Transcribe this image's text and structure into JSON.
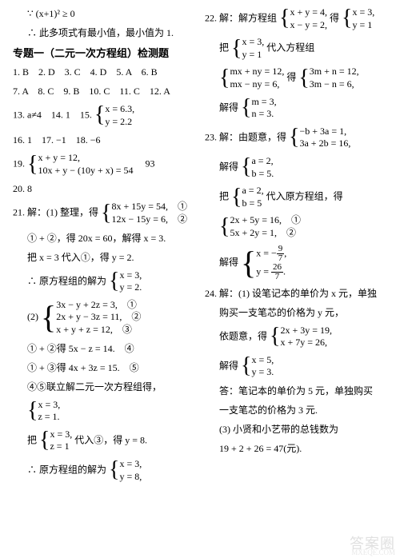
{
  "left": {
    "l1": "∵ (x+1)² ≥ 0",
    "l2": "∴ 此多项式有最小值，最小值为 1.",
    "header": "专题一（二元一次方程组）检测题",
    "ans1": "1. B　2. D　3. C　4. D　5. A　6. B",
    "ans2": "7. A　8. C　9. B　10. C　11. C　12. A",
    "ans3a": "13. a≠4　14. 1　15.",
    "sys15a": "x = 6.3,",
    "sys15b": "y = 2.2",
    "ans4": "16. 1　17. −1　18. −6",
    "n19": "19.",
    "sys19a": "x + y = 12,",
    "sys19b": "10x + y − (10y + x) = 54",
    "n19ans": "93",
    "n20": "20. 8",
    "n21": "21. 解：(1) 整理，得",
    "sys21a": "8x + 15y = 54,　①",
    "sys21b": "12x − 15y = 6,　②",
    "l21c": "① + ②，得 20x = 60，解得 x = 3.",
    "l21d": "把 x = 3 代入①，得 y = 2.",
    "l21e": "∴ 原方程组的解为",
    "sys21ea": "x = 3,",
    "sys21eb": "y = 2.",
    "n21_2": "(2)",
    "sys21_2a": "3x − y + 2z = 3,　①",
    "sys21_2b": "2x + y − 3z = 11,　②",
    "sys21_2c": "x + y + z = 12,　③",
    "l21_2d": "① + ②得 5x − z = 14.　④",
    "l21_2e": "① + ③得 4x + 3z = 15.　⑤",
    "l21_2f": "④⑤联立解二元一次方程组得，",
    "sys21_2ga": "x = 3,",
    "sys21_2gb": "z = 1.",
    "l21_2h": "把",
    "sys21_2ha": "x = 3,",
    "sys21_2hb": "z = 1",
    "l21_2h2": "代入③，得 y = 8.",
    "l21_2i": "∴ 原方程组的解为",
    "sys21_2ia": "x = 3,",
    "sys21_2ib": "y = 8,"
  },
  "right": {
    "n22": "22. 解：解方程组",
    "sys22a": "x + y = 4,",
    "sys22b": "x − y = 2,",
    "n22b": "得",
    "sys22ba": "x = 3,",
    "sys22bb": "y = 1",
    "n22c": "把",
    "sys22ca": "x = 3,",
    "sys22cb": "y = 1",
    "n22c2": "代入方程组",
    "sys22da": "mx + ny = 12,",
    "sys22db": "mx − ny = 6,",
    "n22d2": "得",
    "sys22ea": "3m + n = 12,",
    "sys22eb": "3m − n = 6,",
    "n22f": "解得",
    "sys22fa": "m = 3,",
    "sys22fb": "n = 3.",
    "n23": "23. 解：由题意，得",
    "sys23a": "−b + 3a = 1,",
    "sys23b": "3a + 2b = 16,",
    "n23c": "解得",
    "sys23ca": "a = 2,",
    "sys23cb": "b = 5.",
    "n23d": "把",
    "sys23da": "a = 2,",
    "sys23db": "b = 5",
    "n23d2": "代入原方程组，得",
    "sys23ea": "2x + 5y = 16,　①",
    "sys23eb": "5x + 2y = 1,　②",
    "n23f": "解得",
    "sys23fa_pre": "x = −",
    "sys23fa_num": "9",
    "sys23fa_den": "7",
    "sys23fb_pre": "y = ",
    "sys23fb_num": "26",
    "sys23fb_den": "7",
    "n24": "24. 解：(1) 设笔记本的单价为 x 元，单独",
    "n24b": "购买一支笔芯的价格为 y 元，",
    "n24c": "依题意，得",
    "sys24a": "2x + 3y = 19,",
    "sys24b": "x + 7y = 26,",
    "n24d": "解得",
    "sys24da": "x = 5,",
    "sys24db": "y = 3.",
    "n24e": "答：笔记本的单价为 5 元，单独购买",
    "n24f": "一支笔芯的价格为 3 元.",
    "n24g": "(3) 小贤和小艺带的总钱数为",
    "n24h": "19 + 2 + 26 = 47(元)."
  },
  "watermark": "答案圈",
  "wmurl": "MXEQE.COM"
}
